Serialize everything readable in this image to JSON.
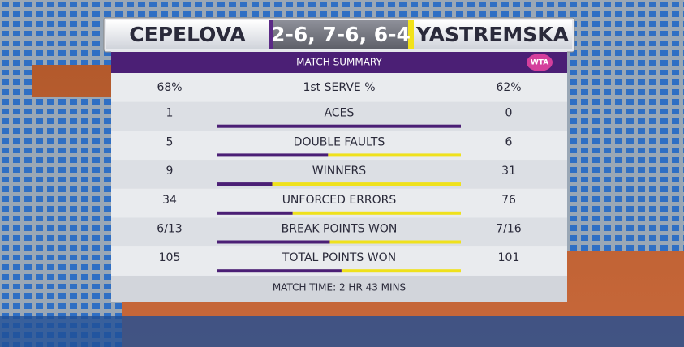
{
  "header": {
    "player1": "CEPELOVA",
    "score": "2-6, 7-6, 6-4",
    "player2": "YASTREMSKA"
  },
  "panel": {
    "title": "MATCH SUMMARY",
    "logo": "WTA",
    "rows": [
      {
        "label": "1st SERVE %",
        "p1": "68%",
        "p2": "62%",
        "bar": false
      },
      {
        "label": "ACES",
        "p1": 1,
        "p2": 0,
        "bar": true
      },
      {
        "label": "DOUBLE FAULTS",
        "p1": 5,
        "p2": 6,
        "bar": true
      },
      {
        "label": "WINNERS",
        "p1": 9,
        "p2": 31,
        "bar": true
      },
      {
        "label": "UNFORCED ERRORS",
        "p1": 34,
        "p2": 76,
        "bar": true
      },
      {
        "label": "BREAK POINTS WON",
        "p1": "6/13",
        "p2": "7/16",
        "bar": true
      },
      {
        "label": "TOTAL POINTS WON",
        "p1": 105,
        "p2": 101,
        "bar": true
      }
    ],
    "footer": "MATCH TIME: 2 HR 43 MINS"
  }
}
